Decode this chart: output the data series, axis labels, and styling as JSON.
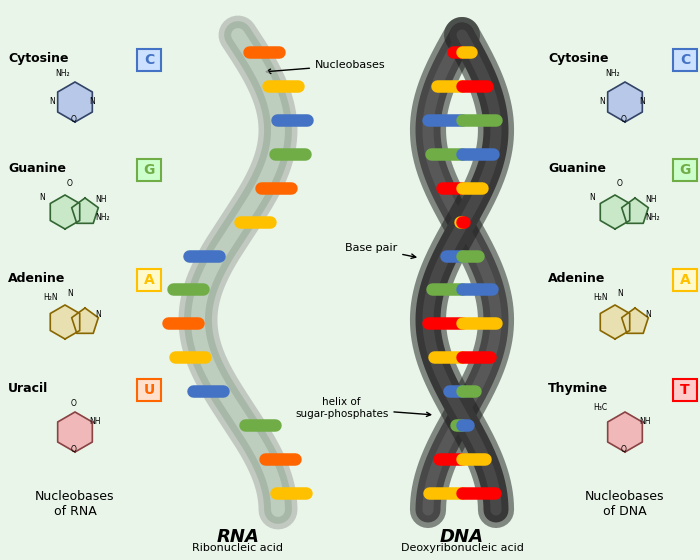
{
  "background_color": "#e8f5e8",
  "rna_label": "RNA",
  "rna_sublabel": "Ribonucleic acid",
  "dna_label": "DNA",
  "dna_sublabel": "Deoxyribonucleic acid",
  "left_bases": [
    {
      "name": "Cytosine",
      "letter": "C",
      "color": "#4472C4",
      "bg": "#cce0ff"
    },
    {
      "name": "Guanine",
      "letter": "G",
      "color": "#70AD47",
      "bg": "#ccffcc"
    },
    {
      "name": "Adenine",
      "letter": "A",
      "color": "#FFC000",
      "bg": "#fffacc"
    },
    {
      "name": "Uracil",
      "letter": "U",
      "color": "#FF6600",
      "bg": "#ffe0cc"
    }
  ],
  "right_bases": [
    {
      "name": "Cytosine",
      "letter": "C",
      "color": "#4472C4",
      "bg": "#cce0ff"
    },
    {
      "name": "Guanine",
      "letter": "G",
      "color": "#70AD47",
      "bg": "#ccffcc"
    },
    {
      "name": "Adenine",
      "letter": "A",
      "color": "#FFC000",
      "bg": "#fffacc"
    },
    {
      "name": "Thymine",
      "letter": "T",
      "color": "#FF0000",
      "bg": "#ffcccc"
    }
  ],
  "rna_base_colors": [
    "#FF6600",
    "#FFC000",
    "#4472C4",
    "#70AD47"
  ],
  "dna_colors1": [
    "#FF0000",
    "#FFC000",
    "#4472C4",
    "#70AD47"
  ],
  "dna_colors2": [
    "#FFC000",
    "#FF0000",
    "#70AD47",
    "#4472C4"
  ],
  "footnote_left": "Nucleobases\nof RNA",
  "footnote_right": "Nucleobases\nof DNA"
}
